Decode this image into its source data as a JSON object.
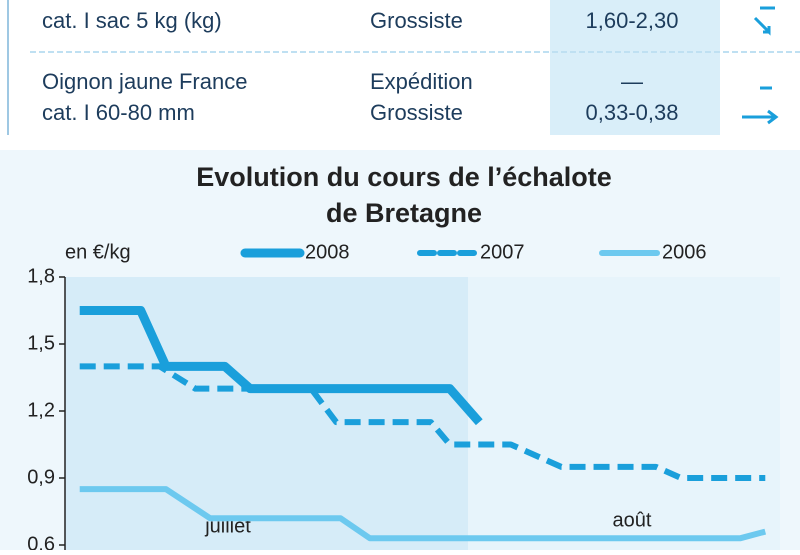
{
  "table": {
    "rows": [
      [
        [
          "cat. I sac 5 kg (kg)"
        ],
        [
          "Grossiste"
        ],
        [
          "1,60-2,30"
        ]
      ],
      [
        [
          "Oignon jaune France",
          "cat. I 60-80 mm"
        ],
        [
          "Expédition",
          "Grossiste"
        ],
        [
          "—",
          "0,33-0,38"
        ]
      ]
    ]
  },
  "chart_data": {
    "type": "line",
    "title": "Evolution du cours de l’échalote",
    "subtitle": "de Bretagne",
    "y_label": "en €/kg",
    "annotations": [
      "juillet",
      "août"
    ],
    "xlim": [
      0,
      34
    ],
    "ylim": [
      0.6,
      1.8
    ],
    "yticks": [
      {
        "value": 0.6,
        "label": "0,6"
      },
      {
        "value": 0.9,
        "label": "0,9"
      },
      {
        "value": 1.2,
        "label": "1,2"
      },
      {
        "value": 1.5,
        "label": "1,5"
      },
      {
        "value": 1.8,
        "label": "1,8"
      }
    ],
    "series": [
      {
        "name": "2008",
        "color": "#1a9fdb",
        "dashed": false,
        "x": [
          0.7,
          3.6,
          4.8,
          7.6,
          8.8,
          18.3,
          19.7
        ],
        "values": [
          1.65,
          1.65,
          1.4,
          1.4,
          1.3,
          1.3,
          1.15
        ]
      },
      {
        "name": "2007",
        "color": "#1a9fdb",
        "dashed": true,
        "x": [
          0.7,
          4.5,
          6.2,
          11.7,
          12.9,
          17.4,
          18.3,
          21.2,
          23.6,
          28.1,
          29.3,
          33.3
        ],
        "values": [
          1.4,
          1.4,
          1.3,
          1.3,
          1.15,
          1.15,
          1.05,
          1.05,
          0.95,
          0.95,
          0.9,
          0.9
        ]
      },
      {
        "name": "2006",
        "color": "#6dc9ef",
        "dashed": false,
        "x": [
          0.7,
          4.8,
          6.9,
          13.1,
          14.5,
          32.1,
          33.3
        ],
        "values": [
          0.85,
          0.85,
          0.72,
          0.72,
          0.63,
          0.63,
          0.66
        ]
      }
    ]
  }
}
